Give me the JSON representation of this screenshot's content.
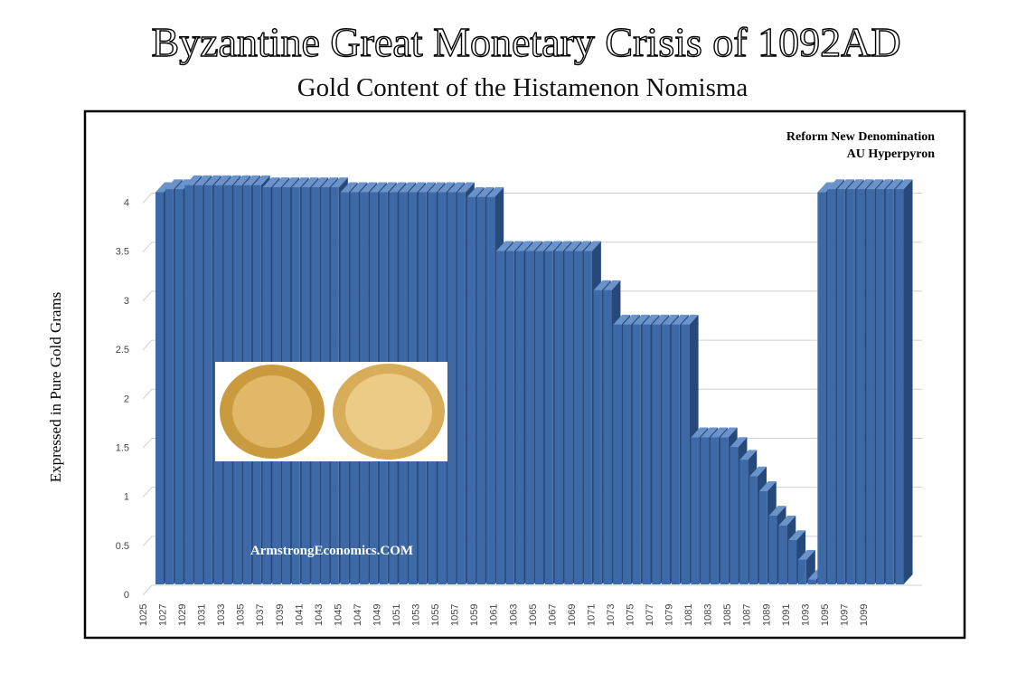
{
  "chart_data": {
    "type": "bar3d",
    "title": "Byzantine Great Monetary Crisis of 1092AD",
    "subtitle": "Gold Content of the Histamenon Nomisma",
    "y_label": "Expressed in Pure Gold Grams",
    "annotations": [
      "Reform  New Denomination",
      "AU Hyperpyron"
    ],
    "watermark": "ArmstrongEconomics.COM",
    "categories": [
      "1025",
      null,
      "1027",
      null,
      "1029",
      null,
      "1031",
      null,
      "1033",
      null,
      "1035",
      null,
      "1037",
      null,
      "1039",
      null,
      "1041",
      null,
      "1043",
      null,
      "1045",
      null,
      "1047",
      null,
      "1049",
      null,
      "1051",
      null,
      "1053",
      null,
      "1055",
      null,
      "1057",
      null,
      "1059",
      null,
      "1061",
      null,
      "1063",
      null,
      "1065",
      null,
      "1067",
      null,
      "1069",
      null,
      "1071",
      null,
      "1073",
      null,
      "1075",
      null,
      "1077",
      null,
      "1079",
      null,
      "1081",
      null,
      "1083",
      null,
      "1085",
      null,
      "1087",
      null,
      "1089",
      null,
      "1091",
      null,
      "1093",
      null,
      "1095",
      null,
      "1097",
      null,
      "1099",
      null,
      null
    ],
    "values": [
      4.0,
      4.03,
      4.03,
      4.07,
      4.07,
      4.07,
      4.07,
      4.07,
      4.07,
      4.07,
      4.07,
      4.05,
      4.05,
      4.05,
      4.05,
      4.05,
      4.05,
      4.05,
      4.05,
      4.0,
      4.0,
      4.0,
      4.0,
      4.0,
      4.0,
      4.0,
      4.0,
      4.0,
      4.0,
      4.0,
      4.0,
      4.0,
      3.95,
      3.95,
      3.95,
      3.4,
      3.4,
      3.4,
      3.4,
      3.4,
      3.4,
      3.4,
      3.4,
      3.4,
      3.4,
      3.0,
      3.0,
      2.65,
      2.65,
      2.65,
      2.65,
      2.65,
      2.65,
      2.65,
      2.65,
      1.5,
      1.5,
      1.5,
      1.5,
      1.4,
      1.27,
      1.1,
      0.95,
      0.7,
      0.6,
      0.45,
      0.25,
      0.05,
      4.0,
      4.03,
      4.03,
      4.03,
      4.03,
      4.03,
      4.03,
      4.03,
      4.03
    ],
    "color": "#3d6aa6",
    "ylim": [
      0,
      4.3
    ],
    "yticks": [
      0,
      0.5,
      1,
      1.5,
      2,
      2.5,
      3,
      3.5,
      4
    ],
    "grid": true
  }
}
